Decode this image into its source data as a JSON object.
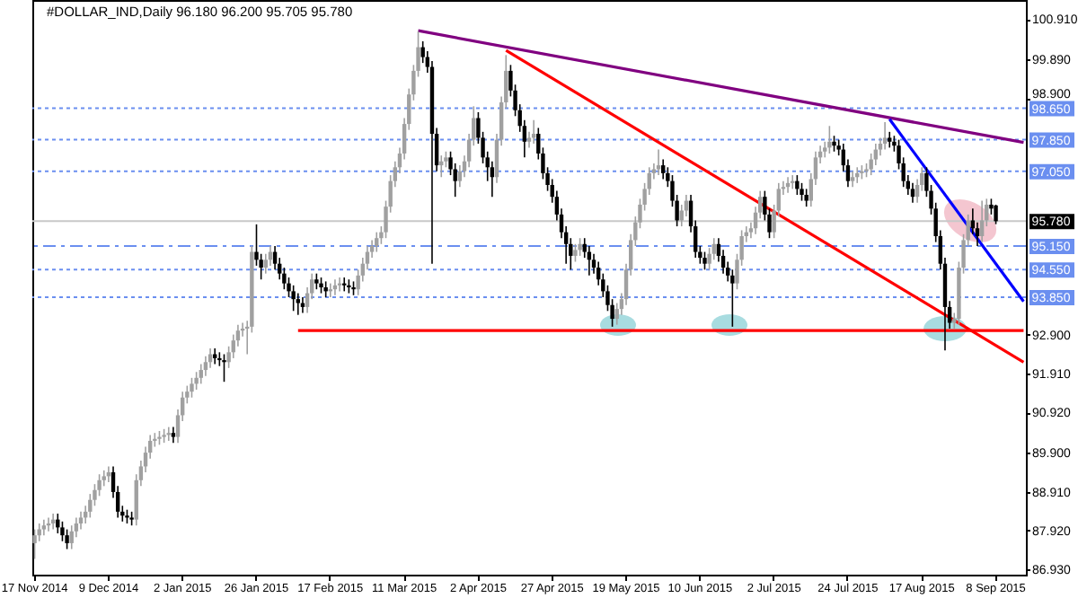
{
  "chart_data": {
    "type": "candlestick",
    "title": "#DOLLAR_IND,Daily  96.180 96.200 95.705 95.780",
    "categories": [
      "17 Nov 2014",
      null,
      null,
      null,
      null,
      null,
      null,
      null,
      null,
      null,
      null,
      null,
      null,
      null,
      null,
      null,
      "9 Dec 2014",
      null,
      null,
      null,
      null,
      null,
      null,
      null,
      null,
      null,
      null,
      null,
      null,
      null,
      null,
      null,
      "2 Jan 2015",
      null,
      null,
      null,
      null,
      null,
      null,
      null,
      null,
      null,
      null,
      null,
      null,
      null,
      null,
      null,
      "26 Jan 2015",
      null,
      null,
      null,
      null,
      null,
      null,
      null,
      null,
      null,
      null,
      null,
      null,
      null,
      null,
      null,
      "17 Feb 2015",
      null,
      null,
      null,
      null,
      null,
      null,
      null,
      null,
      null,
      null,
      null,
      null,
      null,
      null,
      null,
      "11 Mar 2015",
      null,
      null,
      null,
      null,
      null,
      null,
      null,
      null,
      null,
      null,
      null,
      null,
      null,
      null,
      null,
      "2 Apr 2015",
      null,
      null,
      null,
      null,
      null,
      null,
      null,
      null,
      null,
      null,
      null,
      null,
      null,
      null,
      null,
      "27 Apr 2015",
      null,
      null,
      null,
      null,
      null,
      null,
      null,
      null,
      null,
      null,
      null,
      null,
      null,
      null,
      null,
      "19 May 2015",
      null,
      null,
      null,
      null,
      null,
      null,
      null,
      null,
      null,
      null,
      null,
      null,
      null,
      null,
      null,
      "10 Jun 2015",
      null,
      null,
      null,
      null,
      null,
      null,
      null,
      null,
      null,
      null,
      null,
      null,
      null,
      null,
      null,
      "2 Jul 2015",
      null,
      null,
      null,
      null,
      null,
      null,
      null,
      null,
      null,
      null,
      null,
      null,
      null,
      null,
      null,
      "24 Jul 2015",
      null,
      null,
      null,
      null,
      null,
      null,
      null,
      null,
      null,
      null,
      null,
      null,
      null,
      null,
      null,
      "17 Aug 2015",
      null,
      null,
      null,
      null,
      null,
      null,
      null,
      null,
      null,
      null,
      null,
      null,
      null,
      null,
      null,
      "8 Sep 2015",
      null,
      null,
      null,
      null,
      null,
      null
    ],
    "ohlc": [
      [
        87.6,
        87.95,
        87.2,
        87.8
      ],
      [
        87.8,
        88.1,
        87.65,
        87.95
      ],
      [
        87.95,
        88.2,
        87.8,
        88.05
      ],
      [
        88.05,
        88.25,
        87.9,
        88.1
      ],
      [
        88.1,
        88.35,
        87.95,
        88.2
      ],
      [
        88.2,
        88.35,
        87.85,
        88.0
      ],
      [
        88.0,
        88.15,
        87.65,
        87.8
      ],
      [
        87.8,
        87.95,
        87.45,
        87.6
      ],
      [
        87.6,
        88.05,
        87.45,
        87.9
      ],
      [
        87.9,
        88.25,
        87.75,
        88.1
      ],
      [
        88.1,
        88.4,
        87.95,
        88.25
      ],
      [
        88.25,
        88.55,
        88.1,
        88.4
      ],
      [
        88.4,
        88.85,
        88.25,
        88.7
      ],
      [
        88.7,
        89.1,
        88.55,
        88.95
      ],
      [
        88.95,
        89.35,
        88.8,
        89.2
      ],
      [
        89.2,
        89.45,
        89.05,
        89.3
      ],
      [
        89.3,
        89.55,
        89.15,
        89.4
      ],
      [
        89.4,
        89.55,
        88.75,
        88.9
      ],
      [
        88.9,
        89.05,
        88.25,
        88.4
      ],
      [
        88.4,
        88.55,
        88.15,
        88.3
      ],
      [
        88.3,
        88.45,
        88.1,
        88.25
      ],
      [
        88.25,
        88.4,
        88.05,
        88.2
      ],
      [
        88.2,
        89.35,
        88.05,
        89.2
      ],
      [
        89.2,
        89.7,
        89.05,
        89.55
      ],
      [
        89.55,
        90.05,
        89.4,
        89.9
      ],
      [
        89.9,
        90.35,
        89.75,
        90.2
      ],
      [
        90.2,
        90.4,
        90.05,
        90.25
      ],
      [
        90.25,
        90.45,
        90.1,
        90.3
      ],
      [
        90.3,
        90.5,
        90.15,
        90.35
      ],
      [
        90.35,
        90.55,
        90.2,
        90.4
      ],
      [
        90.4,
        90.55,
        90.15,
        90.3
      ],
      [
        90.3,
        91.0,
        90.15,
        90.85
      ],
      [
        90.85,
        91.45,
        90.7,
        91.3
      ],
      [
        91.3,
        91.6,
        91.15,
        91.45
      ],
      [
        91.45,
        91.8,
        91.3,
        91.65
      ],
      [
        91.65,
        91.95,
        91.5,
        91.8
      ],
      [
        91.8,
        92.15,
        91.65,
        92.0
      ],
      [
        92.0,
        92.35,
        91.85,
        92.2
      ],
      [
        92.2,
        92.55,
        92.05,
        92.4
      ],
      [
        92.4,
        92.55,
        92.15,
        92.3
      ],
      [
        92.3,
        92.45,
        92.1,
        92.25
      ],
      [
        92.25,
        92.4,
        91.7,
        92.2
      ],
      [
        92.2,
        92.6,
        92.05,
        92.45
      ],
      [
        92.45,
        92.9,
        92.3,
        92.75
      ],
      [
        92.75,
        93.15,
        92.6,
        93.0
      ],
      [
        93.0,
        93.2,
        92.85,
        93.05
      ],
      [
        93.05,
        93.25,
        92.4,
        93.1
      ],
      [
        93.1,
        95.15,
        92.95,
        95.0
      ],
      [
        95.0,
        95.7,
        94.65,
        94.8
      ],
      [
        94.8,
        94.95,
        94.3,
        94.6
      ],
      [
        94.6,
        94.95,
        94.45,
        94.8
      ],
      [
        94.8,
        95.15,
        94.65,
        95.0
      ],
      [
        95.0,
        95.15,
        94.55,
        94.7
      ],
      [
        94.7,
        94.85,
        94.3,
        94.45
      ],
      [
        94.45,
        94.6,
        94.05,
        94.2
      ],
      [
        94.2,
        94.35,
        93.85,
        94.0
      ],
      [
        94.0,
        94.15,
        93.5,
        93.8
      ],
      [
        93.8,
        93.95,
        93.4,
        93.7
      ],
      [
        93.7,
        93.85,
        93.45,
        93.6
      ],
      [
        93.6,
        94.1,
        93.45,
        93.95
      ],
      [
        93.95,
        94.45,
        93.8,
        94.3
      ],
      [
        94.3,
        94.45,
        94.05,
        94.2
      ],
      [
        94.2,
        94.35,
        93.95,
        94.1
      ],
      [
        94.1,
        94.25,
        93.85,
        94.0
      ],
      [
        94.0,
        94.2,
        93.85,
        94.05
      ],
      [
        94.05,
        94.3,
        93.9,
        94.15
      ],
      [
        94.15,
        94.35,
        94.0,
        94.2
      ],
      [
        94.2,
        94.35,
        94.0,
        94.15
      ],
      [
        94.15,
        94.3,
        93.95,
        94.1
      ],
      [
        94.1,
        94.25,
        93.9,
        94.05
      ],
      [
        94.05,
        94.55,
        93.9,
        94.4
      ],
      [
        94.4,
        94.85,
        94.25,
        94.7
      ],
      [
        94.7,
        95.15,
        94.55,
        95.0
      ],
      [
        95.0,
        95.3,
        94.85,
        95.15
      ],
      [
        95.15,
        95.5,
        95.0,
        95.35
      ],
      [
        95.35,
        95.65,
        95.2,
        95.5
      ],
      [
        95.5,
        96.3,
        95.35,
        96.15
      ],
      [
        96.15,
        96.95,
        96.0,
        96.8
      ],
      [
        96.8,
        97.3,
        96.65,
        97.15
      ],
      [
        97.15,
        97.65,
        97.0,
        97.5
      ],
      [
        97.5,
        98.4,
        97.35,
        98.25
      ],
      [
        98.25,
        99.15,
        98.1,
        99.0
      ],
      [
        99.0,
        99.75,
        98.85,
        99.6
      ],
      [
        99.6,
        100.6,
        99.45,
        100.2
      ],
      [
        100.2,
        100.35,
        99.8,
        99.95
      ],
      [
        99.95,
        100.1,
        99.55,
        99.7
      ],
      [
        99.7,
        99.85,
        94.7,
        98.0
      ],
      [
        98.0,
        98.15,
        97.05,
        97.2
      ],
      [
        97.2,
        97.45,
        96.9,
        97.3
      ],
      [
        97.3,
        97.55,
        97.15,
        97.4
      ],
      [
        97.4,
        97.55,
        96.95,
        97.1
      ],
      [
        97.1,
        97.25,
        96.4,
        96.8
      ],
      [
        96.8,
        97.2,
        96.65,
        97.05
      ],
      [
        97.05,
        97.45,
        96.9,
        97.3
      ],
      [
        97.3,
        98.0,
        97.15,
        97.85
      ],
      [
        97.85,
        98.7,
        97.7,
        98.4
      ],
      [
        98.4,
        98.55,
        97.75,
        97.9
      ],
      [
        97.9,
        98.05,
        97.25,
        97.4
      ],
      [
        97.4,
        97.55,
        96.8,
        97.15
      ],
      [
        97.15,
        97.3,
        96.4,
        96.9
      ],
      [
        96.9,
        98.0,
        96.75,
        97.85
      ],
      [
        97.85,
        98.95,
        97.7,
        98.8
      ],
      [
        98.8,
        100.0,
        98.65,
        99.6
      ],
      [
        99.6,
        99.75,
        98.95,
        99.1
      ],
      [
        99.1,
        99.25,
        98.45,
        98.6
      ],
      [
        98.6,
        98.75,
        98.05,
        98.2
      ],
      [
        98.2,
        98.35,
        97.4,
        97.8
      ],
      [
        97.8,
        98.05,
        97.65,
        97.9
      ],
      [
        97.9,
        98.35,
        97.75,
        98.0
      ],
      [
        98.0,
        98.15,
        97.35,
        97.5
      ],
      [
        97.5,
        97.65,
        96.85,
        97.0
      ],
      [
        97.0,
        97.15,
        96.55,
        96.7
      ],
      [
        96.7,
        96.85,
        96.25,
        96.4
      ],
      [
        96.4,
        96.55,
        95.8,
        95.95
      ],
      [
        95.95,
        96.1,
        95.35,
        95.5
      ],
      [
        95.5,
        95.65,
        94.7,
        95.2
      ],
      [
        95.2,
        95.35,
        94.55,
        94.9
      ],
      [
        94.9,
        95.2,
        94.75,
        95.05
      ],
      [
        95.05,
        95.35,
        94.9,
        95.2
      ],
      [
        95.2,
        95.35,
        94.85,
        95.0
      ],
      [
        95.0,
        95.15,
        94.4,
        94.8
      ],
      [
        94.8,
        94.95,
        94.45,
        94.6
      ],
      [
        94.6,
        94.75,
        94.15,
        94.3
      ],
      [
        94.3,
        94.45,
        93.85,
        94.0
      ],
      [
        94.0,
        94.15,
        93.5,
        93.65
      ],
      [
        93.65,
        93.8,
        93.1,
        93.3
      ],
      [
        93.3,
        93.7,
        93.15,
        93.55
      ],
      [
        93.55,
        93.95,
        93.4,
        93.8
      ],
      [
        93.8,
        94.7,
        93.65,
        94.55
      ],
      [
        94.55,
        95.45,
        94.4,
        95.3
      ],
      [
        95.3,
        95.9,
        95.15,
        95.75
      ],
      [
        95.75,
        96.35,
        95.6,
        96.2
      ],
      [
        96.2,
        96.75,
        96.05,
        96.6
      ],
      [
        96.6,
        97.15,
        96.45,
        97.0
      ],
      [
        97.0,
        97.25,
        96.85,
        97.1
      ],
      [
        97.1,
        97.6,
        96.95,
        97.2
      ],
      [
        97.2,
        97.35,
        96.85,
        97.0
      ],
      [
        97.0,
        97.15,
        96.65,
        96.8
      ],
      [
        96.8,
        96.95,
        96.15,
        96.3
      ],
      [
        96.3,
        96.45,
        95.65,
        95.8
      ],
      [
        95.8,
        96.2,
        95.65,
        96.05
      ],
      [
        96.05,
        96.45,
        95.9,
        96.3
      ],
      [
        96.3,
        96.45,
        95.5,
        95.65
      ],
      [
        95.65,
        95.8,
        94.85,
        95.0
      ],
      [
        95.0,
        95.15,
        94.7,
        94.85
      ],
      [
        94.85,
        95.0,
        94.55,
        94.7
      ],
      [
        94.7,
        95.1,
        94.55,
        94.95
      ],
      [
        94.95,
        95.35,
        94.8,
        95.2
      ],
      [
        95.2,
        95.35,
        94.75,
        94.9
      ],
      [
        94.9,
        95.05,
        94.45,
        94.6
      ],
      [
        94.6,
        94.75,
        94.25,
        94.4
      ],
      [
        94.4,
        94.55,
        93.1,
        94.2
      ],
      [
        94.2,
        94.95,
        94.05,
        94.8
      ],
      [
        94.8,
        95.55,
        94.65,
        95.4
      ],
      [
        95.4,
        95.65,
        95.25,
        95.5
      ],
      [
        95.5,
        95.75,
        95.35,
        95.6
      ],
      [
        95.6,
        96.15,
        95.45,
        96.0
      ],
      [
        96.0,
        96.55,
        95.85,
        96.4
      ],
      [
        96.4,
        96.55,
        95.8,
        95.95
      ],
      [
        95.95,
        96.1,
        95.35,
        95.5
      ],
      [
        95.5,
        96.2,
        95.35,
        96.05
      ],
      [
        96.05,
        96.75,
        95.9,
        96.6
      ],
      [
        96.6,
        96.8,
        96.45,
        96.65
      ],
      [
        96.65,
        96.9,
        96.5,
        96.75
      ],
      [
        96.75,
        96.95,
        96.6,
        96.8
      ],
      [
        96.8,
        96.95,
        96.45,
        96.6
      ],
      [
        96.6,
        96.75,
        96.3,
        96.45
      ],
      [
        96.45,
        96.6,
        96.15,
        96.3
      ],
      [
        96.3,
        97.0,
        96.15,
        96.85
      ],
      [
        96.85,
        97.55,
        96.7,
        97.4
      ],
      [
        97.4,
        97.7,
        97.25,
        97.55
      ],
      [
        97.55,
        97.8,
        97.4,
        97.65
      ],
      [
        97.65,
        98.2,
        97.5,
        97.8
      ],
      [
        97.8,
        97.95,
        97.55,
        97.7
      ],
      [
        97.7,
        97.85,
        97.45,
        97.6
      ],
      [
        97.6,
        97.75,
        97.05,
        97.2
      ],
      [
        97.2,
        97.35,
        96.65,
        96.8
      ],
      [
        96.8,
        97.05,
        96.65,
        96.9
      ],
      [
        96.9,
        97.15,
        96.75,
        97.0
      ],
      [
        97.0,
        97.2,
        96.85,
        97.05
      ],
      [
        97.05,
        97.25,
        96.9,
        97.1
      ],
      [
        97.1,
        97.5,
        96.95,
        97.35
      ],
      [
        97.35,
        97.75,
        97.2,
        97.6
      ],
      [
        97.6,
        97.9,
        97.45,
        97.75
      ],
      [
        97.75,
        98.3,
        97.6,
        97.9
      ],
      [
        97.9,
        98.05,
        97.65,
        97.8
      ],
      [
        97.8,
        97.95,
        97.55,
        97.7
      ],
      [
        97.7,
        97.85,
        97.1,
        97.25
      ],
      [
        97.25,
        97.4,
        96.65,
        96.8
      ],
      [
        96.8,
        96.95,
        96.45,
        96.6
      ],
      [
        96.6,
        96.75,
        96.25,
        96.4
      ],
      [
        96.4,
        96.85,
        96.25,
        96.7
      ],
      [
        96.7,
        97.15,
        96.55,
        97.0
      ],
      [
        97.0,
        97.15,
        96.4,
        96.55
      ],
      [
        96.55,
        96.7,
        95.95,
        96.1
      ],
      [
        96.1,
        96.25,
        95.25,
        95.4
      ],
      [
        95.4,
        95.55,
        94.55,
        94.7
      ],
      [
        94.7,
        94.85,
        92.5,
        93.6
      ],
      [
        93.6,
        93.75,
        93.05,
        93.2
      ],
      [
        93.2,
        93.45,
        93.05,
        93.3
      ],
      [
        93.3,
        94.75,
        93.15,
        94.6
      ],
      [
        94.6,
        95.45,
        94.45,
        95.3
      ],
      [
        95.3,
        95.95,
        95.15,
        95.8
      ],
      [
        95.8,
        96.1,
        95.45,
        95.6
      ],
      [
        95.6,
        95.75,
        95.15,
        95.4
      ],
      [
        95.4,
        96.3,
        95.25,
        95.8
      ],
      [
        95.8,
        96.35,
        95.65,
        96.2
      ],
      [
        96.2,
        96.35,
        95.95,
        96.1
      ],
      [
        96.18,
        96.2,
        95.705,
        95.78
      ],
      null,
      null,
      null,
      null,
      null,
      null
    ],
    "colors": [
      "#a0a0a0",
      "#a0a0a0",
      "#a0a0a0",
      "#a0a0a0",
      "#a0a0a0",
      "#000000",
      "#000000",
      "#000000",
      "#a0a0a0",
      "#a0a0a0",
      "#a0a0a0",
      "#a0a0a0",
      "#a0a0a0",
      "#a0a0a0",
      "#a0a0a0",
      "#a0a0a0",
      "#a0a0a0",
      "#000000",
      "#000000",
      "#000000",
      "#000000",
      "#000000",
      "#a0a0a0",
      "#a0a0a0",
      "#a0a0a0",
      "#a0a0a0",
      "#a0a0a0",
      "#a0a0a0",
      "#a0a0a0",
      "#a0a0a0",
      "#000000",
      "#a0a0a0",
      "#a0a0a0",
      "#a0a0a0",
      "#a0a0a0",
      "#a0a0a0",
      "#a0a0a0",
      "#a0a0a0",
      "#a0a0a0",
      "#000000",
      "#000000",
      "#000000",
      "#a0a0a0",
      "#a0a0a0",
      "#a0a0a0",
      "#a0a0a0",
      "#a0a0a0",
      "#a0a0a0",
      "#000000",
      "#000000",
      "#a0a0a0",
      "#a0a0a0",
      "#000000",
      "#000000",
      "#000000",
      "#000000",
      "#000000",
      "#000000",
      "#000000",
      "#a0a0a0",
      "#a0a0a0",
      "#000000",
      "#000000",
      "#000000",
      "#a0a0a0",
      "#a0a0a0",
      "#a0a0a0",
      "#000000",
      "#000000",
      "#000000",
      "#a0a0a0",
      "#a0a0a0",
      "#a0a0a0",
      "#a0a0a0",
      "#a0a0a0",
      "#a0a0a0",
      "#a0a0a0",
      "#a0a0a0",
      "#a0a0a0",
      "#a0a0a0",
      "#a0a0a0",
      "#a0a0a0",
      "#a0a0a0",
      "#a0a0a0",
      "#000000",
      "#000000",
      "#000000",
      "#000000",
      "#a0a0a0",
      "#a0a0a0",
      "#000000",
      "#000000",
      "#a0a0a0",
      "#a0a0a0",
      "#a0a0a0",
      "#a0a0a0",
      "#000000",
      "#000000",
      "#000000",
      "#000000",
      "#a0a0a0",
      "#a0a0a0",
      "#a0a0a0",
      "#000000",
      "#000000",
      "#000000",
      "#000000",
      "#a0a0a0",
      "#a0a0a0",
      "#000000",
      "#000000",
      "#000000",
      "#000000",
      "#000000",
      "#000000",
      "#000000",
      "#000000",
      "#a0a0a0",
      "#a0a0a0",
      "#000000",
      "#000000",
      "#000000",
      "#000000",
      "#000000",
      "#000000",
      "#000000",
      "#a0a0a0",
      "#a0a0a0",
      "#a0a0a0",
      "#a0a0a0",
      "#a0a0a0",
      "#a0a0a0",
      "#a0a0a0",
      "#a0a0a0",
      "#a0a0a0",
      "#a0a0a0",
      "#000000",
      "#000000",
      "#000000",
      "#000000",
      "#a0a0a0",
      "#a0a0a0",
      "#000000",
      "#000000",
      "#000000",
      "#000000",
      "#a0a0a0",
      "#a0a0a0",
      "#000000",
      "#000000",
      "#000000",
      "#000000",
      "#a0a0a0",
      "#a0a0a0",
      "#a0a0a0",
      "#a0a0a0",
      "#a0a0a0",
      "#a0a0a0",
      "#000000",
      "#000000",
      "#a0a0a0",
      "#a0a0a0",
      "#a0a0a0",
      "#a0a0a0",
      "#a0a0a0",
      "#000000",
      "#000000",
      "#000000",
      "#a0a0a0",
      "#a0a0a0",
      "#a0a0a0",
      "#a0a0a0",
      "#a0a0a0",
      "#000000",
      "#000000",
      "#000000",
      "#000000",
      "#a0a0a0",
      "#a0a0a0",
      "#a0a0a0",
      "#a0a0a0",
      "#a0a0a0",
      "#a0a0a0",
      "#a0a0a0",
      "#a0a0a0",
      "#000000",
      "#000000",
      "#000000",
      "#000000",
      "#000000",
      "#000000",
      "#a0a0a0",
      "#a0a0a0",
      "#000000",
      "#000000",
      "#000000",
      "#000000",
      "#000000",
      "#000000",
      "#a0a0a0",
      "#a0a0a0",
      "#a0a0a0",
      "#a0a0a0",
      "#000000",
      "#000000",
      "#a0a0a0",
      "#a0a0a0",
      "#000000",
      "#000000",
      null,
      null,
      null,
      null,
      null,
      null
    ],
    "series": [
      {
        "type": "line",
        "color": "#800080",
        "values": [
          null,
          null,
          null,
          null,
          null,
          null,
          null,
          null,
          null,
          null,
          null,
          null,
          null,
          null,
          null,
          null,
          null,
          null,
          null,
          null,
          null,
          null,
          null,
          null,
          null,
          null,
          null,
          null,
          null,
          null,
          null,
          null,
          null,
          null,
          null,
          null,
          null,
          null,
          null,
          null,
          null,
          null,
          null,
          null,
          null,
          null,
          null,
          null,
          null,
          null,
          null,
          null,
          null,
          null,
          null,
          null,
          null,
          null,
          null,
          null,
          null,
          null,
          null,
          null,
          null,
          null,
          null,
          null,
          null,
          null,
          null,
          null,
          null,
          null,
          null,
          null,
          null,
          null,
          null,
          null,
          null,
          null,
          null,
          100.62,
          null,
          null,
          null,
          null,
          null,
          null,
          null,
          null,
          null,
          null,
          null,
          null,
          null,
          null,
          null,
          null,
          null,
          null,
          null,
          null,
          null,
          null,
          null,
          null,
          null,
          null,
          null,
          null,
          null,
          null,
          null,
          null,
          null,
          null,
          null,
          null,
          null,
          null,
          null,
          null,
          null,
          null,
          null,
          null,
          null,
          null,
          null,
          null,
          null,
          null,
          null,
          null,
          null,
          null,
          null,
          null,
          null,
          null,
          null,
          null,
          null,
          null,
          null,
          null,
          null,
          null,
          null,
          null,
          null,
          null,
          null,
          null,
          null,
          null,
          null,
          null,
          null,
          null,
          null,
          null,
          null,
          null,
          null,
          null,
          null,
          null,
          null,
          null,
          null,
          null,
          null,
          null,
          null,
          null,
          null,
          null,
          null,
          null,
          null,
          null,
          null,
          null,
          null,
          null,
          null,
          null,
          null,
          null,
          null,
          null,
          null,
          null,
          null,
          null,
          null,
          null,
          null,
          null,
          null,
          null,
          null,
          null,
          null,
          null,
          null,
          null,
          null,
          null,
          null,
          null,
          97.78
        ]
      },
      {
        "type": "line",
        "color": "#ff0000",
        "values": [
          null,
          null,
          null,
          null,
          null,
          null,
          null,
          null,
          null,
          null,
          null,
          null,
          null,
          null,
          null,
          null,
          null,
          null,
          null,
          null,
          null,
          null,
          null,
          null,
          null,
          null,
          null,
          null,
          null,
          null,
          null,
          null,
          null,
          null,
          null,
          null,
          null,
          null,
          null,
          null,
          null,
          null,
          null,
          null,
          null,
          null,
          null,
          null,
          null,
          null,
          null,
          null,
          null,
          null,
          null,
          null,
          null,
          null,
          null,
          null,
          null,
          null,
          null,
          null,
          null,
          null,
          null,
          null,
          null,
          null,
          null,
          null,
          null,
          null,
          null,
          null,
          null,
          null,
          null,
          null,
          null,
          null,
          null,
          null,
          null,
          null,
          null,
          null,
          null,
          null,
          null,
          null,
          null,
          null,
          null,
          null,
          null,
          null,
          null,
          null,
          null,
          null,
          100.12,
          null,
          null,
          null,
          null,
          null,
          null,
          null,
          null,
          null,
          null,
          null,
          null,
          null,
          null,
          null,
          null,
          null,
          null,
          null,
          null,
          null,
          null,
          null,
          null,
          null,
          null,
          null,
          null,
          null,
          null,
          null,
          null,
          null,
          null,
          null,
          null,
          null,
          null,
          null,
          null,
          null,
          null,
          null,
          null,
          null,
          null,
          null,
          null,
          null,
          null,
          null,
          null,
          null,
          null,
          null,
          null,
          null,
          null,
          null,
          null,
          null,
          null,
          null,
          null,
          null,
          null,
          null,
          null,
          null,
          null,
          null,
          null,
          null,
          null,
          null,
          null,
          null,
          null,
          null,
          null,
          null,
          null,
          null,
          null,
          null,
          null,
          null,
          null,
          null,
          null,
          null,
          null,
          null,
          null,
          null,
          null,
          null,
          null,
          null,
          null,
          null,
          null,
          null,
          null,
          null,
          null,
          null,
          null,
          null,
          null,
          null,
          92.2
        ]
      },
      {
        "type": "line",
        "color": "#0000ff",
        "values": [
          null,
          null,
          null,
          null,
          null,
          null,
          null,
          null,
          null,
          null,
          null,
          null,
          null,
          null,
          null,
          null,
          null,
          null,
          null,
          null,
          null,
          null,
          null,
          null,
          null,
          null,
          null,
          null,
          null,
          null,
          null,
          null,
          null,
          null,
          null,
          null,
          null,
          null,
          null,
          null,
          null,
          null,
          null,
          null,
          null,
          null,
          null,
          null,
          null,
          null,
          null,
          null,
          null,
          null,
          null,
          null,
          null,
          null,
          null,
          null,
          null,
          null,
          null,
          null,
          null,
          null,
          null,
          null,
          null,
          null,
          null,
          null,
          null,
          null,
          null,
          null,
          null,
          null,
          null,
          null,
          null,
          null,
          null,
          null,
          null,
          null,
          null,
          null,
          null,
          null,
          null,
          null,
          null,
          null,
          null,
          null,
          null,
          null,
          null,
          null,
          null,
          null,
          null,
          null,
          null,
          null,
          null,
          null,
          null,
          null,
          null,
          null,
          null,
          null,
          null,
          null,
          null,
          null,
          null,
          null,
          null,
          null,
          null,
          null,
          null,
          null,
          null,
          null,
          null,
          null,
          null,
          null,
          null,
          null,
          null,
          null,
          null,
          null,
          null,
          null,
          null,
          null,
          null,
          null,
          null,
          null,
          null,
          null,
          null,
          null,
          null,
          null,
          null,
          null,
          null,
          null,
          null,
          null,
          null,
          null,
          null,
          null,
          null,
          null,
          null,
          null,
          null,
          null,
          null,
          null,
          null,
          null,
          null,
          null,
          null,
          null,
          null,
          null,
          null,
          null,
          null,
          null,
          null,
          null,
          null,
          98.37,
          null,
          null,
          null,
          null,
          null,
          null,
          null,
          null,
          null,
          null,
          null,
          null,
          null,
          null,
          null,
          null,
          null,
          null,
          null,
          null,
          null,
          null,
          null,
          null,
          null,
          null,
          null,
          null,
          93.74
        ]
      },
      {
        "type": "line",
        "color": "#ff0000",
        "values": [
          null,
          null,
          null,
          null,
          null,
          null,
          null,
          null,
          null,
          null,
          null,
          null,
          null,
          null,
          null,
          null,
          null,
          null,
          null,
          null,
          null,
          null,
          null,
          null,
          null,
          null,
          null,
          null,
          null,
          null,
          null,
          null,
          null,
          null,
          null,
          null,
          null,
          null,
          null,
          null,
          null,
          null,
          null,
          null,
          null,
          null,
          null,
          null,
          null,
          null,
          null,
          null,
          null,
          null,
          null,
          null,
          null,
          93.0,
          null,
          null,
          null,
          null,
          null,
          null,
          null,
          null,
          null,
          null,
          null,
          null,
          null,
          null,
          null,
          null,
          null,
          null,
          null,
          null,
          null,
          null,
          null,
          null,
          null,
          null,
          null,
          null,
          null,
          null,
          null,
          null,
          null,
          null,
          null,
          null,
          null,
          null,
          null,
          null,
          null,
          null,
          null,
          null,
          null,
          null,
          null,
          null,
          null,
          null,
          null,
          null,
          null,
          null,
          null,
          null,
          null,
          null,
          null,
          null,
          null,
          null,
          null,
          null,
          null,
          null,
          null,
          null,
          null,
          null,
          null,
          null,
          null,
          null,
          null,
          null,
          null,
          null,
          null,
          null,
          null,
          null,
          null,
          null,
          null,
          null,
          null,
          null,
          null,
          null,
          null,
          null,
          null,
          null,
          null,
          null,
          null,
          null,
          null,
          null,
          null,
          null,
          null,
          null,
          null,
          null,
          null,
          null,
          null,
          null,
          null,
          null,
          null,
          null,
          null,
          null,
          null,
          null,
          null,
          null,
          null,
          null,
          null,
          null,
          null,
          null,
          null,
          null,
          null,
          null,
          null,
          null,
          null,
          null,
          null,
          null,
          null,
          null,
          null,
          null,
          null,
          null,
          null,
          null,
          null,
          null,
          null,
          null,
          null,
          null,
          null,
          null,
          null,
          null,
          null,
          null,
          93.0
        ]
      }
    ],
    "ref_lines": [
      {
        "axis": "y",
        "value": 98.65,
        "label": "98.650",
        "color": "#6b8ff0",
        "line_style": "dotted"
      },
      {
        "axis": "y",
        "value": 97.85,
        "label": "97.850",
        "color": "#6b8ff0",
        "line_style": "dotted"
      },
      {
        "axis": "y",
        "value": 97.05,
        "label": "97.050",
        "color": "#6b8ff0",
        "line_style": "dotted"
      },
      {
        "axis": "y",
        "value": 95.78,
        "label": "95.780",
        "color": "#c8c8c8",
        "line_style": "solid"
      },
      {
        "axis": "y",
        "value": 95.15,
        "label": "95.150",
        "color": "#6b8ff0",
        "line_style": "dashed"
      },
      {
        "axis": "y",
        "value": 94.55,
        "label": "94.550",
        "color": "#6b8ff0",
        "line_style": "dotted"
      },
      {
        "axis": "y",
        "value": 93.85,
        "label": "93.850",
        "color": "#6b8ff0",
        "line_style": "dotted"
      }
    ],
    "ylim": [
      86.8,
      101.4
    ],
    "yticks": [
      {
        "value": 100.91,
        "label": "100.910"
      },
      {
        "value": 99.89,
        "label": "99.890"
      },
      {
        "value": 98.9,
        "label": "98.900"
      },
      {
        "value": 92.9,
        "label": "92.900"
      },
      {
        "value": 91.91,
        "label": "91.910"
      },
      {
        "value": 90.92,
        "label": "90.920"
      },
      {
        "value": 89.9,
        "label": "89.900"
      },
      {
        "value": 88.91,
        "label": "88.910"
      },
      {
        "value": 87.92,
        "label": "87.920"
      },
      {
        "value": 86.93,
        "label": "86.930"
      }
    ]
  }
}
